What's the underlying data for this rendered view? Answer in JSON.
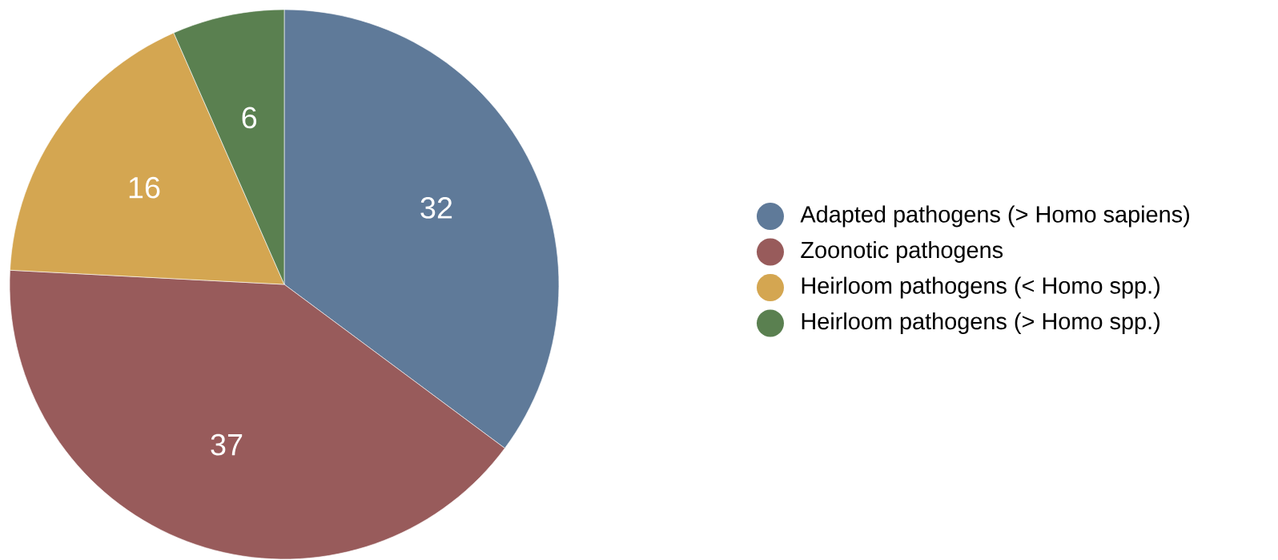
{
  "chart_data": {
    "type": "pie",
    "categories": [
      "Adapted pathogens (> Homo sapiens)",
      "Zoonotic pathogens",
      "Heirloom pathogens (< Homo spp.)",
      "Heirloom pathogens (> Homo spp.)"
    ],
    "values": [
      32,
      37,
      16,
      6
    ],
    "colors": [
      "#5f7a99",
      "#985b5b",
      "#d4a651",
      "#5a8050"
    ],
    "data_labels": true,
    "legend": "right"
  }
}
